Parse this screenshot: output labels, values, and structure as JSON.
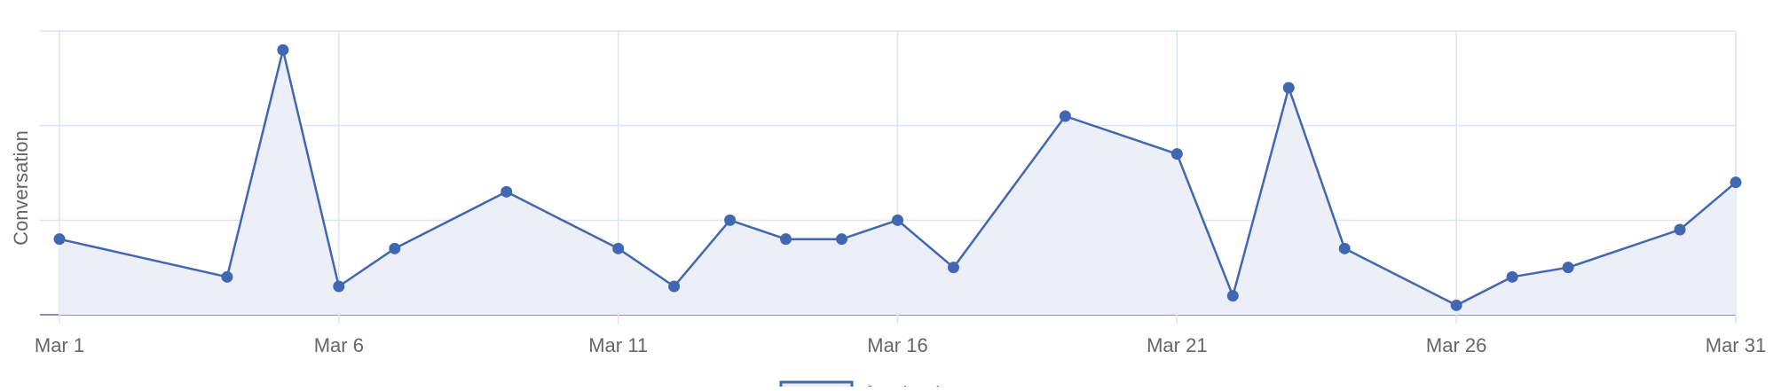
{
  "chart_data": {
    "type": "line",
    "fill": true,
    "ylabel": "Conversation",
    "xlabel": "",
    "x_tick_labels": [
      "Mar 1",
      "Mar 6",
      "Mar 11",
      "Mar 16",
      "Mar 21",
      "Mar 26",
      "Mar 31"
    ],
    "x_tick_days": [
      1,
      6,
      11,
      16,
      21,
      26,
      31
    ],
    "xlim": [
      1,
      31
    ],
    "ylim": [
      0,
      6
    ],
    "grid": true,
    "legend_position": "bottom",
    "series": [
      {
        "name": "facebook",
        "color": "#4267b2",
        "fill_color": "#eceff7",
        "points": [
          {
            "day": 1,
            "value": 1.6
          },
          {
            "day": 4,
            "value": 0.8
          },
          {
            "day": 5,
            "value": 5.6
          },
          {
            "day": 6,
            "value": 0.6
          },
          {
            "day": 7,
            "value": 1.4
          },
          {
            "day": 9,
            "value": 2.6
          },
          {
            "day": 11,
            "value": 1.4
          },
          {
            "day": 12,
            "value": 0.6
          },
          {
            "day": 13,
            "value": 2.0
          },
          {
            "day": 14,
            "value": 1.6
          },
          {
            "day": 15,
            "value": 1.6
          },
          {
            "day": 16,
            "value": 2.0
          },
          {
            "day": 17,
            "value": 1.0
          },
          {
            "day": 19,
            "value": 4.2
          },
          {
            "day": 21,
            "value": 3.4
          },
          {
            "day": 22,
            "value": 0.4
          },
          {
            "day": 23,
            "value": 4.8
          },
          {
            "day": 24,
            "value": 1.4
          },
          {
            "day": 26,
            "value": 0.2
          },
          {
            "day": 27,
            "value": 0.8
          },
          {
            "day": 28,
            "value": 1.0
          },
          {
            "day": 30,
            "value": 1.8
          },
          {
            "day": 31,
            "value": 2.8
          }
        ]
      }
    ]
  }
}
